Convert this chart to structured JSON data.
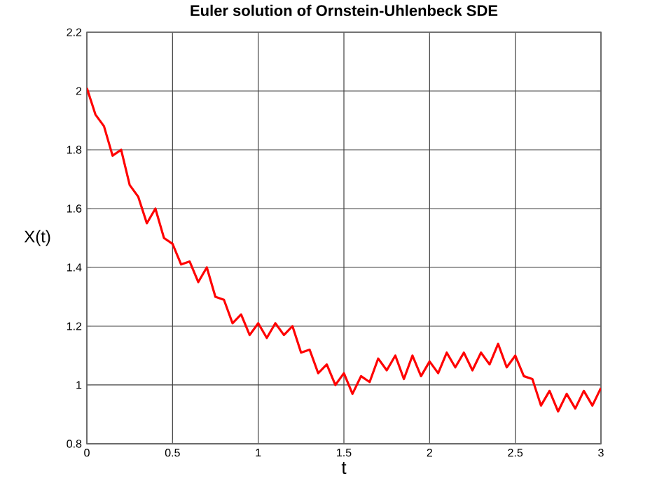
{
  "chart_data": {
    "type": "line",
    "title": "Euler solution of Ornstein-Uhlenbeck SDE",
    "xlabel": "t",
    "ylabel": "X(t)",
    "xlim": [
      0,
      3
    ],
    "ylim": [
      0.8,
      2.2
    ],
    "xticks": [
      0,
      0.5,
      1,
      1.5,
      2,
      2.5,
      3
    ],
    "yticks": [
      0.8,
      1,
      1.2,
      1.4,
      1.6,
      1.8,
      2,
      2.2
    ],
    "grid": true,
    "marker": "none",
    "line_style": "solid",
    "x": [
      0,
      0.05,
      0.1,
      0.15,
      0.2,
      0.25,
      0.3,
      0.35,
      0.4,
      0.45,
      0.5,
      0.55,
      0.6,
      0.65,
      0.7,
      0.75,
      0.8,
      0.85,
      0.9,
      0.95,
      1.0,
      1.05,
      1.1,
      1.15,
      1.2,
      1.25,
      1.3,
      1.35,
      1.4,
      1.45,
      1.5,
      1.55,
      1.6,
      1.65,
      1.7,
      1.75,
      1.8,
      1.85,
      1.9,
      1.95,
      2.0,
      2.05,
      2.1,
      2.15,
      2.2,
      2.25,
      2.3,
      2.35,
      2.4,
      2.45,
      2.5,
      2.55,
      2.6,
      2.65,
      2.7,
      2.75,
      2.8,
      2.85,
      2.9,
      2.95,
      3.0
    ],
    "series": [
      {
        "color": "#ff0000",
        "values": [
          2.01,
          1.92,
          1.88,
          1.78,
          1.8,
          1.68,
          1.64,
          1.55,
          1.6,
          1.5,
          1.48,
          1.41,
          1.42,
          1.35,
          1.4,
          1.3,
          1.29,
          1.21,
          1.24,
          1.17,
          1.21,
          1.16,
          1.21,
          1.17,
          1.2,
          1.11,
          1.12,
          1.04,
          1.07,
          1.0,
          1.04,
          0.97,
          1.03,
          1.01,
          1.09,
          1.05,
          1.1,
          1.02,
          1.1,
          1.03,
          1.08,
          1.04,
          1.11,
          1.06,
          1.11,
          1.05,
          1.11,
          1.07,
          1.14,
          1.06,
          1.1,
          1.03,
          1.02,
          0.93,
          0.98,
          0.91,
          0.97,
          0.92,
          0.98,
          0.93,
          0.99
        ]
      }
    ]
  }
}
